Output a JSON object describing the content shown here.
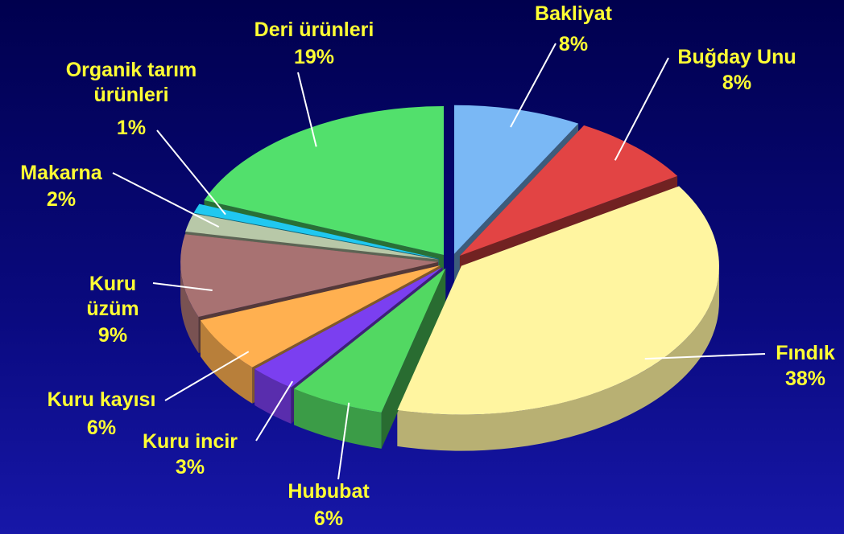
{
  "chart_data": {
    "type": "pie3d",
    "categories": [
      "Bakliyat",
      "Buğday Unu",
      "Fındık",
      "Hububat",
      "Kuru incir",
      "Kuru kayısı",
      "Kuru üzüm",
      "Makarna",
      "Organik tarım ürünleri",
      "Deri ürünleri"
    ],
    "values": [
      8,
      8,
      38,
      6,
      3,
      6,
      9,
      2,
      1,
      19
    ],
    "value_labels": [
      "8%",
      "8%",
      "38%",
      "6%",
      "3%",
      "6%",
      "9%",
      "2%",
      "1%",
      "19%"
    ],
    "colors": [
      "#7ab8f5",
      "#e24444",
      "#fff5a0",
      "#52d862",
      "#7b3ff0",
      "#ffb050",
      "#a87272",
      "#b8c8a8",
      "#20c8f0",
      "#52e06c"
    ]
  }
}
